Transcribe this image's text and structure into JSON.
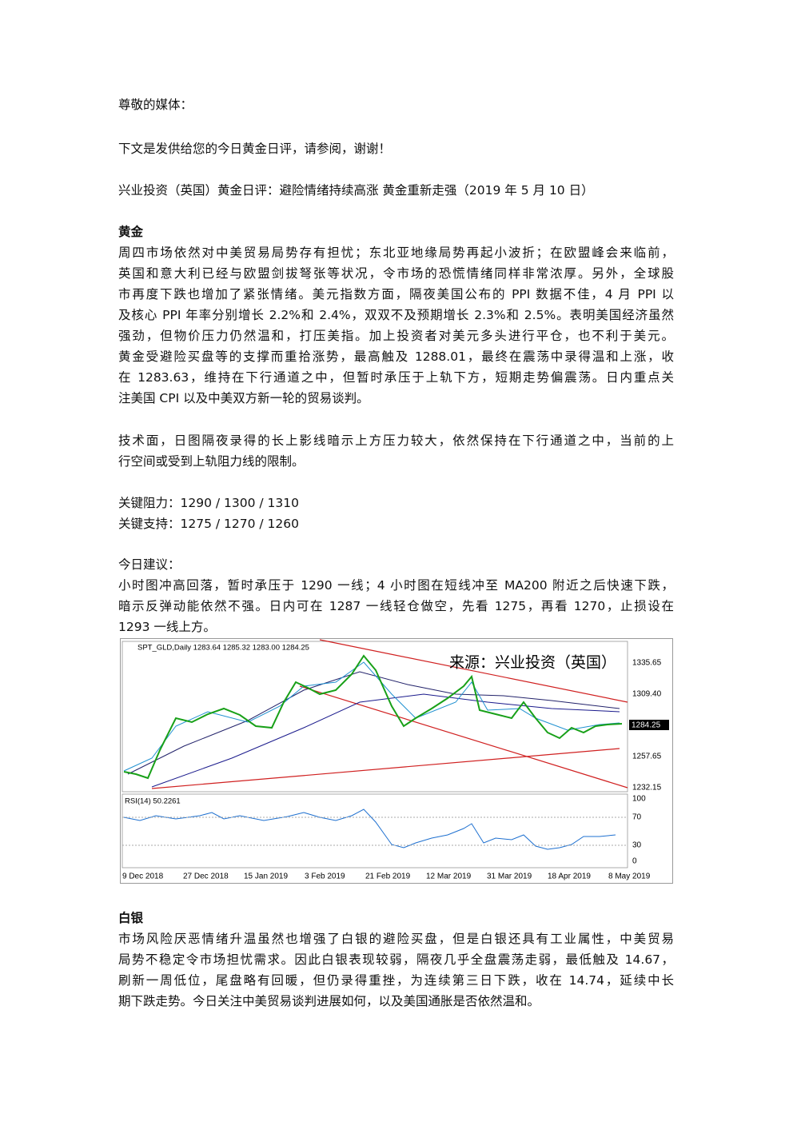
{
  "greeting": "尊敬的媒体：",
  "intro": "下文是发供给您的今日黄金日评，请参阅，谢谢！",
  "headline": "兴业投资（英国）黄金日评：避险情绪持续高涨  黄金重新走强（2019 年 5 月 10 日）",
  "gold": {
    "heading": "黄金",
    "lines": [
      "周四市场依然对中美贸易局势存有担忧；东北亚地缘局势再起小波折；在欧盟峰会来临前，",
      "英国和意大利已经与欧盟剑拔弩张等状况，令市场的恐慌情绪同样非常浓厚。另外，全球股",
      "市再度下跌也增加了紧张情绪。美元指数方面，隔夜美国公布的 PPI 数据不佳，4 月 PPI 以",
      "及核心 PPI 年率分别增长 2.2%和 2.4%，双双不及预期增长 2.3%和 2.5%。表明美国经济虽然",
      "强劲，但物价压力仍然温和，打压美指。加上投资者对美元多头进行平仓，也不利于美元。",
      "黄金受避险买盘等的支撑而重拾涨势，最高触及 1288.01，最终在震荡中录得温和上涨，收",
      "在 1283.63，维持在下行通道之中，但暂时承压于上轨下方，短期走势偏震荡。日内重点关",
      "注美国 CPI 以及中美双方新一轮的贸易谈判。"
    ]
  },
  "technical": {
    "lines": [
      "技术面，日图隔夜录得的长上影线暗示上方压力较大，依然保持在下行通道之中，当前的上",
      "行空间或受到上轨阻力线的限制。"
    ]
  },
  "levels": {
    "lines": [
      "关键阻力：1290 / 1300 / 1310",
      "关键支持：1275 / 1270 / 1260"
    ]
  },
  "advice": {
    "heading": "今日建议：",
    "lines": [
      "小时图冲高回落，暂时承压于 1290 一线；4 小时图在短线冲至 MA200 附近之后快速下跌，",
      "暗示反弹动能依然不强。日内可在 1287 一线轻仓做空，先看 1275，再看 1270，止损设在",
      "1293 一线上方。"
    ]
  },
  "figure": {
    "header": "SPT_GLD,Daily  1283.64 1285.32 1283.00 1284.25",
    "source": "来源：兴业投资（英国）",
    "price_labels": [
      "1335.65",
      "1309.40",
      "1257.65",
      "1232.15"
    ],
    "current_price": "1284.25",
    "rsi_label": "RSI(14) 50.2261",
    "rsi_labels": [
      "100",
      "70",
      "30",
      "0"
    ],
    "date_labels": [
      "9 Dec 2018",
      "27 Dec 2018",
      "15 Jan 2019",
      "3 Feb 2019",
      "21 Feb 2019",
      "12 Mar 2019",
      "31 Mar 2019",
      "18 Apr 2019",
      "8 May 2019"
    ]
  },
  "silver": {
    "heading": "白银",
    "lines": [
      "市场风险厌恶情绪升温虽然也增强了白银的避险买盘，但是白银还具有工业属性，中美贸易",
      "局势不稳定令市场担忧需求。因此白银表现较弱，隔夜几乎全盘震荡走弱，最低触及 14.67，",
      "刷新一周低位，尾盘略有回暖，但仍录得重挫，为连续第三日下跌，收在 14.74，延续中长",
      "期下跌走势。今日关注中美贸易谈判进展如何，以及美国通胀是否依然温和。"
    ]
  }
}
